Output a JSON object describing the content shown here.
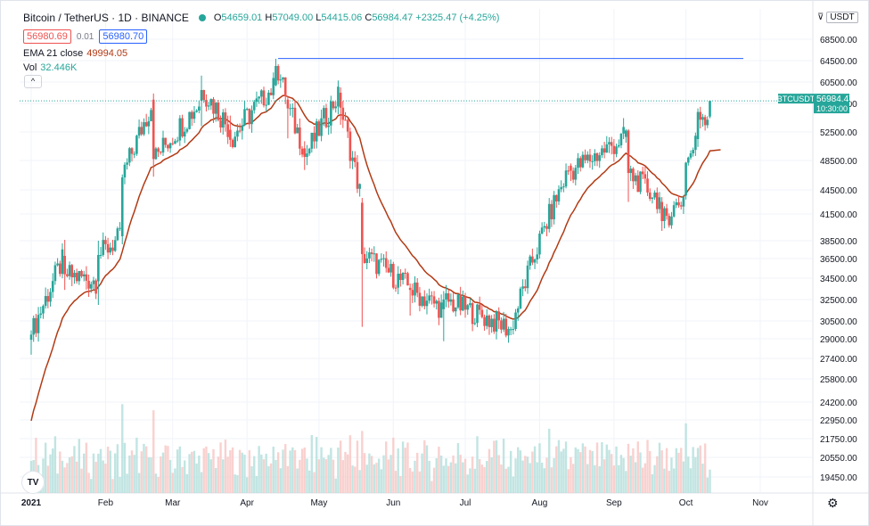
{
  "header": {
    "symbol": "Bitcoin / TetherUS",
    "interval": "1D",
    "exchange": "BINANCE",
    "open_label": "O",
    "open": "54659.01",
    "high_label": "H",
    "high": "57049.00",
    "low_label": "L",
    "low": "54415.06",
    "close_label": "C",
    "close": "56984.47",
    "change": "+2325.47 (+4.25%)",
    "sell_price": "56980.69",
    "spread": "0.01",
    "buy_price": "56980.70",
    "ema_label": "EMA 21 close",
    "ema_value": "49994.05",
    "vol_label": "Vol",
    "vol_value": "32.446K",
    "collapse_icon": "^"
  },
  "currency": {
    "label": "USDT",
    "chevron": "⊽"
  },
  "price_tag": {
    "symbol": "BTCUSDT",
    "value": "56984.47",
    "countdown": "10:30:00"
  },
  "logo_text": "TV",
  "settings_icon": "⚙",
  "colors": {
    "up": "#26a69a",
    "down": "#ef5350",
    "ema": "#b23a14",
    "hline": "#2962ff",
    "grid": "#f0f3fa"
  },
  "chart_data": {
    "type": "candlestick",
    "symbol": "BTCUSDT",
    "x_labels": [
      "2021",
      "Feb",
      "Mar",
      "Apr",
      "May",
      "Jun",
      "Jul",
      "Aug",
      "Sep",
      "Oct",
      "Nov"
    ],
    "y_ticks": [
      "68500.00",
      "64500.00",
      "60500.00",
      "56500.00",
      "52500.00",
      "48500.00",
      "44500.00",
      "41500.00",
      "38500.00",
      "36500.00",
      "34500.00",
      "32500.00",
      "30500.00",
      "29000.00",
      "27400.00",
      "25800.00",
      "24200.00",
      "22950.00",
      "21750.00",
      "20550.00",
      "19450.00"
    ],
    "ylim": [
      18500,
      71000
    ],
    "horizontal_line": 64900,
    "ema_period": 21,
    "ohlc": [
      [
        "2021-01-01",
        28920,
        29700,
        27700,
        29350
      ],
      [
        "2021-01-15",
        36800,
        38600,
        33400,
        34900
      ],
      [
        "2021-01-29",
        34200,
        38500,
        32000,
        36900
      ],
      [
        "2021-02-08",
        39000,
        46600,
        38100,
        46200
      ],
      [
        "2021-02-21",
        57200,
        58350,
        46300,
        48700
      ],
      [
        "2021-03-13",
        57000,
        61700,
        53300,
        59000
      ],
      [
        "2021-03-25",
        52800,
        54800,
        50400,
        51400
      ],
      [
        "2021-04-13",
        59900,
        64850,
        59700,
        63500
      ],
      [
        "2021-04-18",
        57200,
        57900,
        51600,
        55800
      ],
      [
        "2021-04-25",
        50200,
        51200,
        47200,
        49000
      ],
      [
        "2021-05-10",
        58500,
        59500,
        53500,
        55900
      ],
      [
        "2021-05-19",
        42900,
        43500,
        30000,
        37000
      ],
      [
        "2021-06-08",
        33600,
        34000,
        31000,
        33400
      ],
      [
        "2021-06-22",
        31600,
        33300,
        28800,
        32500
      ],
      [
        "2021-07-20",
        29800,
        30000,
        29300,
        29800
      ],
      [
        "2021-08-14",
        47800,
        48100,
        45700,
        47100
      ],
      [
        "2021-09-06",
        51800,
        52900,
        51000,
        52700
      ],
      [
        "2021-09-07",
        52700,
        52900,
        43000,
        46800
      ],
      [
        "2021-09-21",
        43000,
        43600,
        39600,
        40700
      ],
      [
        "2021-10-01",
        43800,
        48300,
        43300,
        48200
      ],
      [
        "2021-10-06",
        51500,
        55800,
        50400,
        55300
      ],
      [
        "2021-10-11",
        54659.01,
        57049.0,
        54415.06,
        56984.47
      ]
    ],
    "ema_last": 49994.05,
    "volume_last": "32.446K"
  }
}
